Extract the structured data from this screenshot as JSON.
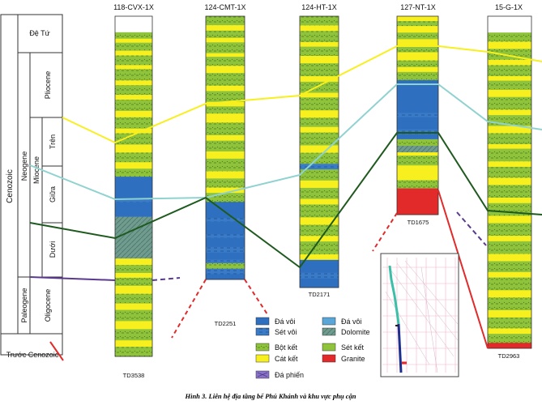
{
  "wells": [
    {
      "name": "118-CVX-1X",
      "td": "TD3538"
    },
    {
      "name": "124-CMT-1X",
      "td": "TD2251"
    },
    {
      "name": "124-HT-1X",
      "td": "TD2171"
    },
    {
      "name": "127-NT-1X",
      "td": "TD1675"
    },
    {
      "name": "15-G-1X",
      "td": "TD2963"
    }
  ],
  "strat": {
    "era": "Cenozoic",
    "neogene": "Neogene",
    "paleogene": "Paleogene",
    "de_tu": "Đệ Tứ",
    "pliocene": "Pliocene",
    "miocene": "Miocene",
    "tren": "Trên",
    "giua": "Giữa",
    "duoi": "Dưới",
    "oligocene": "Oligocene",
    "pre": "Trước Cenozoic"
  },
  "legend": {
    "da_voi_1": "Đá vôi",
    "set_voi": "Sét vôi",
    "da_voi_2": "Đá vôi",
    "dolomite": "Dolomite",
    "bot_ket": "Bột kết",
    "cat_ket": "Cát kết",
    "set_ket": "Sét kết",
    "granite": "Granite",
    "da_phien": "Đá phiến"
  },
  "caption": "Hình 3. Liên hệ địa tầng bể Phú Khánh và khu vực phụ cận",
  "colors": {
    "yellow": "#f7f01e",
    "green": "#8fc33b",
    "blue": "#2e6fc0",
    "teal_gray": "#6f9c8e",
    "red": "#e32a2a",
    "cyan_line": "#8fd2d0",
    "dark_green_line": "#1e5a1e",
    "purple": "#5a3a8e"
  }
}
